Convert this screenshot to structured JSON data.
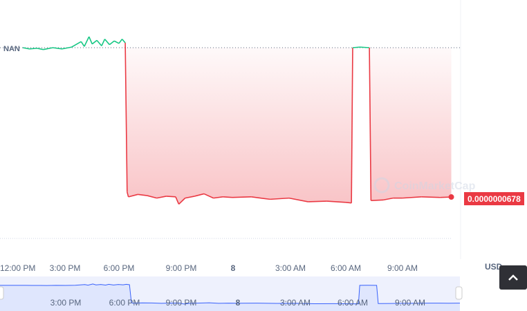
{
  "chart_data": {
    "type": "line",
    "open_label": "NAN",
    "currency": "USD",
    "current_price_label": "0.0000000678",
    "open_price": 3.12e-07,
    "x_ticks": [
      "12:00 PM",
      "3:00 PM",
      "6:00 PM",
      "9:00 PM",
      "8",
      "3:00 AM",
      "6:00 AM",
      "9:00 AM"
    ],
    "navigator_ticks": [
      "3:00 PM",
      "6:00 PM",
      "9:00 PM",
      "8",
      "3:00 AM",
      "6:00 AM",
      "9:00 AM"
    ],
    "watermark": "CoinMarketCap",
    "colors": {
      "up": "#16c784",
      "down": "#ea3943",
      "navigator": "#3861fb"
    },
    "x": [
      "12:55",
      "13:15",
      "13:40",
      "14:00",
      "14:30",
      "15:00",
      "15:30",
      "16:00",
      "16:10",
      "16:25",
      "16:35",
      "16:50",
      "17:05",
      "17:15",
      "17:30",
      "17:45",
      "18:00",
      "18:10",
      "18:20",
      "18:26",
      "18:30",
      "19:00",
      "19:30",
      "20:00",
      "20:30",
      "21:00",
      "21:10",
      "21:30",
      "22:00",
      "22:30",
      "23:00",
      "23:30",
      "00:00",
      "01:00",
      "02:00",
      "03:00",
      "04:00",
      "05:00",
      "06:00",
      "06:18",
      "06:22",
      "06:45",
      "07:15",
      "07:20",
      "08:00",
      "08:30",
      "09:00",
      "10:00",
      "11:00",
      "11:35"
    ],
    "values": [
      3.12e-07,
      3.1e-07,
      3.11e-07,
      3.09e-07,
      3.12e-07,
      3.1e-07,
      3.13e-07,
      3.22e-07,
      3.14e-07,
      3.3e-07,
      3.18e-07,
      3.24e-07,
      3.15e-07,
      3.26e-07,
      3.17e-07,
      3.23e-07,
      3.19e-07,
      3.26e-07,
      3.2e-07,
      7.6e-08,
      6.8e-08,
      7.2e-08,
      7e-08,
      6.6e-08,
      6.9e-08,
      6.8e-08,
      5.6e-08,
      6.6e-08,
      6.9e-08,
      7.3e-08,
      6.6e-08,
      6.8e-08,
      6.7e-08,
      6.8e-08,
      6.4e-08,
      6.6e-08,
      6e-08,
      6.1e-08,
      5.9e-08,
      5.8e-08,
      3.12e-07,
      3.13e-07,
      3.12e-07,
      6.2e-08,
      6.3e-08,
      6.6e-08,
      6.6e-08,
      6.8e-08,
      6.7e-08,
      6.78e-08
    ]
  }
}
